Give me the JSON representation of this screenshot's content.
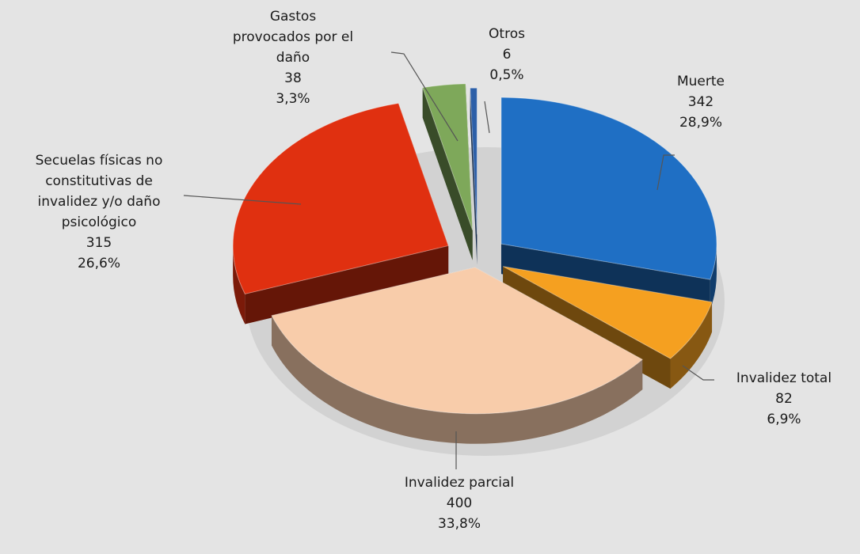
{
  "chart_data": {
    "type": "pie",
    "title": "",
    "style": "3d-exploded",
    "slices": [
      {
        "label": "Muerte",
        "value": 342,
        "percent": "28,9%",
        "color": "#1f6fc4"
      },
      {
        "label": "Invalidez total",
        "value": 82,
        "percent": "6,9%",
        "color": "#f5a020"
      },
      {
        "label": "Invalidez parcial",
        "value": 400,
        "percent": "33,8%",
        "color": "#f8ccaa"
      },
      {
        "label": "Secuelas físicas no constitutivas de invalidez y/o daño psicológico",
        "value": 315,
        "percent": "26,6%",
        "color": "#e03010"
      },
      {
        "label": "Gastos provocados por el daño",
        "value": 38,
        "percent": "3,3%",
        "color": "#7ea85a"
      },
      {
        "label": "Otros",
        "value": 6,
        "percent": "0,5%",
        "color": "#2c5fa8"
      }
    ]
  },
  "labels": {
    "muerte": {
      "lines": [
        "Muerte"
      ],
      "value": "342",
      "percent": "28,9%"
    },
    "invalidez_total": {
      "lines": [
        "Invalidez total"
      ],
      "value": "82",
      "percent": "6,9%"
    },
    "invalidez_parcial": {
      "lines": [
        "Invalidez parcial"
      ],
      "value": "400",
      "percent": "33,8%"
    },
    "secuelas": {
      "lines": [
        "Secuelas físicas no",
        "constitutivas de",
        "invalidez y/o daño",
        "psicológico"
      ],
      "value": "315",
      "percent": "26,6%"
    },
    "gastos": {
      "lines": [
        "Gastos",
        "provocados por el",
        "daño"
      ],
      "value": "38",
      "percent": "3,3%"
    },
    "otros": {
      "lines": [
        "Otros"
      ],
      "value": "6",
      "percent": "0,5%"
    }
  }
}
